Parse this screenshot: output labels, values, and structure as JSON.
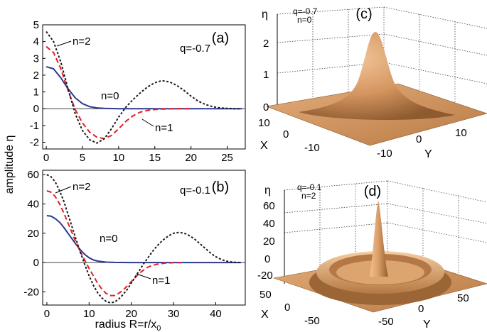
{
  "xlabel_main": "radius R=r/x",
  "xlabel_sub": "0",
  "ylabel": "amplitude η",
  "chart_data": [
    {
      "type": "line",
      "panel_label": "(a)",
      "q_label": "q=-0.7",
      "xlim": [
        -0.5,
        27.5
      ],
      "ylim": [
        -2.4,
        5
      ],
      "xticks": [
        "0",
        "5",
        "10",
        "15",
        "20",
        "25"
      ],
      "yticks": [
        "-2",
        "-1",
        "0",
        "1",
        "2",
        "3",
        "4",
        "5"
      ],
      "series": [
        {
          "name": "n=0",
          "color": "#2b3990",
          "dash": "solid",
          "x": [
            0,
            1,
            2,
            3,
            4,
            5,
            6,
            7,
            8,
            10,
            12,
            14,
            27
          ],
          "y": [
            2.5,
            2.38,
            1.85,
            1.2,
            0.65,
            0.3,
            0.12,
            0.05,
            0.02,
            0.0,
            0.0,
            0.0,
            0.0
          ]
        },
        {
          "name": "n=1",
          "color": "#e31e24",
          "dash": "dashed",
          "x": [
            0,
            1,
            2,
            3,
            4,
            5,
            6,
            7,
            8,
            9,
            10,
            11,
            12,
            13,
            14,
            15,
            16,
            18,
            20
          ],
          "y": [
            3.7,
            3.35,
            2.4,
            1.1,
            -0.05,
            -0.85,
            -1.4,
            -1.7,
            -1.78,
            -1.6,
            -1.2,
            -0.75,
            -0.42,
            -0.2,
            -0.1,
            -0.05,
            -0.02,
            0.0,
            0.0
          ]
        },
        {
          "name": "n=2",
          "color": "#1a1a1a",
          "dash": "dotted",
          "x": [
            0,
            1,
            2,
            3,
            4,
            5,
            6,
            7,
            8,
            9,
            10,
            11,
            12,
            13,
            14,
            15,
            16,
            17,
            18,
            19,
            20,
            21,
            22,
            23,
            24,
            25,
            26,
            27
          ],
          "y": [
            4.6,
            4.0,
            2.8,
            1.2,
            -0.3,
            -1.3,
            -1.85,
            -2.05,
            -1.8,
            -1.2,
            -0.5,
            0.1,
            0.55,
            0.95,
            1.3,
            1.55,
            1.67,
            1.6,
            1.4,
            1.1,
            0.75,
            0.45,
            0.25,
            0.12,
            0.05,
            0.02,
            0.0,
            0.0
          ]
        }
      ]
    },
    {
      "type": "line",
      "panel_label": "(b)",
      "q_label": "q=-0.1",
      "xlim": [
        -1,
        47
      ],
      "ylim": [
        -29,
        63
      ],
      "xticks": [
        "0",
        "10",
        "20",
        "30",
        "40"
      ],
      "yticks": [
        "-20",
        "0",
        "20",
        "40",
        "60"
      ],
      "series": [
        {
          "name": "n=0",
          "color": "#2b3990",
          "dash": "solid",
          "x": [
            0,
            1,
            2,
            3,
            4,
            5,
            6,
            7,
            8,
            9,
            10,
            11,
            12,
            14,
            16,
            20,
            46
          ],
          "y": [
            32,
            31.6,
            30,
            27.5,
            24,
            20,
            16,
            12,
            8.5,
            5.5,
            3.3,
            1.8,
            1.0,
            0.3,
            0.1,
            0.0,
            0.0
          ]
        },
        {
          "name": "n=1",
          "color": "#e31e24",
          "dash": "dashed",
          "x": [
            0,
            1,
            2,
            3,
            4,
            5,
            6,
            7,
            8,
            9,
            10,
            11,
            12,
            13,
            14,
            15,
            16,
            17,
            18,
            19,
            20,
            21,
            22,
            23,
            24,
            25,
            26,
            28,
            30,
            32
          ],
          "y": [
            49,
            48,
            45,
            40,
            34,
            27,
            20,
            13,
            7,
            1.5,
            -4,
            -9,
            -14,
            -18,
            -21,
            -22.5,
            -22.5,
            -21,
            -19,
            -16,
            -13,
            -10,
            -7,
            -5,
            -3,
            -2,
            -1.2,
            -0.4,
            -0.1,
            0.0
          ]
        },
        {
          "name": "n=2",
          "color": "#1a1a1a",
          "dash": "dotted",
          "x": [
            0,
            1,
            2,
            3,
            4,
            5,
            6,
            7,
            8,
            9,
            10,
            11,
            12,
            13,
            14,
            15,
            16,
            17,
            18,
            19,
            20,
            21,
            22,
            23,
            24,
            25,
            26,
            27,
            28,
            29,
            30,
            31,
            32,
            33,
            34,
            35,
            36,
            37,
            38,
            39,
            40,
            41,
            42,
            43,
            44,
            45,
            46
          ],
          "y": [
            60,
            58.5,
            55,
            49,
            42,
            33,
            24,
            15,
            6.5,
            -1.5,
            -9,
            -15.5,
            -20.5,
            -24,
            -26.5,
            -27.5,
            -27,
            -25,
            -22,
            -18.5,
            -14,
            -9.5,
            -5,
            -0.5,
            3.5,
            7.5,
            11,
            14,
            16.5,
            18.5,
            20,
            20.5,
            20.3,
            19.5,
            18,
            16,
            13.5,
            11,
            8.5,
            6,
            4,
            2.5,
            1.4,
            0.7,
            0.3,
            0.1,
            0.0
          ]
        }
      ]
    },
    {
      "type": "surface",
      "panel_label": "(c)",
      "q_label": "q=-0.7",
      "n_label": "n=0",
      "zlabel": "η",
      "xlabel": "X",
      "ylabel": "Y",
      "zticks": [
        "0",
        "1",
        "2"
      ],
      "xticks": [
        "10",
        "0",
        "-10"
      ],
      "yticks": [
        "-10",
        "0",
        "10"
      ],
      "peak": 2.5
    },
    {
      "type": "surface",
      "panel_label": "(d)",
      "q_label": "q=-0.1",
      "n_label": "n=2",
      "zlabel": "η",
      "xlabel": "X",
      "ylabel": "Y",
      "zticks": [
        "-20",
        "0",
        "20",
        "40",
        "60"
      ],
      "xticks": [
        "50",
        "0",
        "-50"
      ],
      "yticks": [
        "-50",
        "0",
        "50"
      ],
      "peak": 60
    }
  ]
}
